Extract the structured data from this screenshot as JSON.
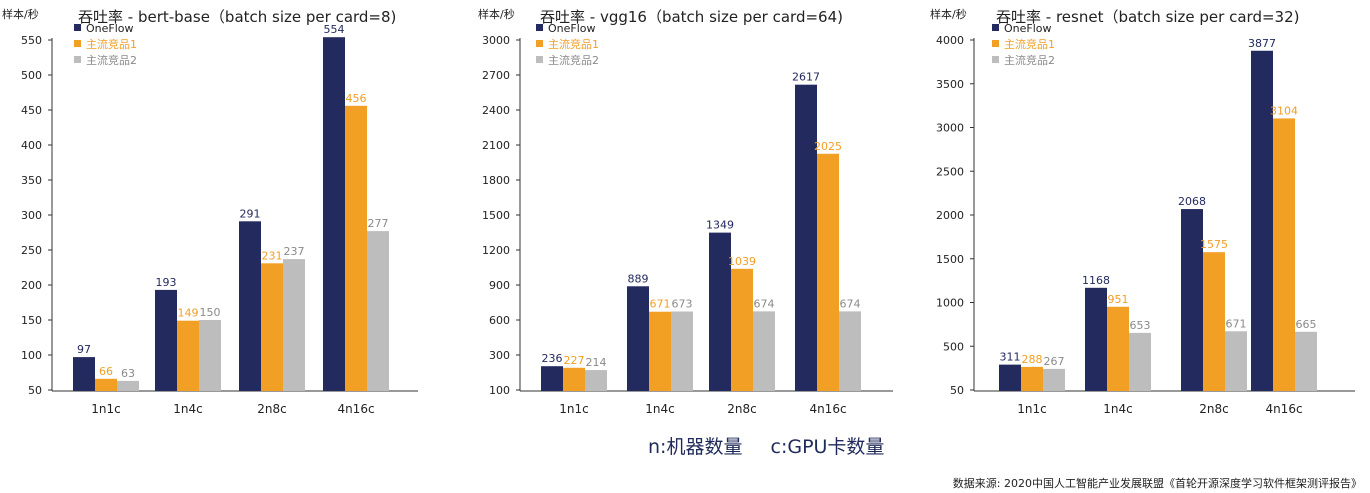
{
  "colors": {
    "oneflow": "#232a5e",
    "competitor1": "#f29f26",
    "competitor2": "#bdbdbd",
    "axis": "#333333",
    "text": "#222222"
  },
  "chart_data": [
    {
      "type": "bar",
      "title": "吞吐率 - bert-base（batch size per card=8)",
      "ylabel": "样本/秒",
      "categories": [
        "1n1c",
        "1n4c",
        "2n8c",
        "4n16c"
      ],
      "yticks": [
        50,
        100,
        150,
        200,
        250,
        300,
        350,
        400,
        450,
        500,
        550
      ],
      "ylim": [
        50,
        575
      ],
      "legend_position": "top-left",
      "series": [
        {
          "name": "OneFlow",
          "values": [
            97,
            193,
            291,
            554
          ],
          "labels": [
            "97",
            "193",
            "291",
            "554"
          ]
        },
        {
          "name": "主流竞品1",
          "values": [
            66,
            149,
            231,
            456
          ],
          "labels": [
            "66",
            "149",
            "231",
            "456"
          ]
        },
        {
          "name": "主流竞品2",
          "values": [
            63,
            150,
            237,
            277
          ],
          "labels": [
            "63",
            "150",
            "237",
            "277"
          ]
        }
      ]
    },
    {
      "type": "bar",
      "title": "吞吐率 - vgg16（batch size per card=64)",
      "ylabel": "样本/秒",
      "categories": [
        "1n1c",
        "1n4c",
        "2n8c",
        "4n16c"
      ],
      "yticks": [
        100,
        300,
        600,
        900,
        1200,
        1500,
        1800,
        2100,
        2400,
        2700,
        3000
      ],
      "ylim": [
        100,
        3100
      ],
      "legend_position": "top-left",
      "series": [
        {
          "name": "OneFlow",
          "values": [
            236,
            889,
            1349,
            2617
          ],
          "labels": [
            "236",
            "889",
            "1349",
            "2617"
          ]
        },
        {
          "name": "主流竞品1",
          "values": [
            227,
            671,
            1039,
            2025
          ],
          "labels": [
            "227",
            "671",
            "1039",
            "2025"
          ]
        },
        {
          "name": "主流竞品2",
          "values": [
            214,
            673,
            674,
            674
          ],
          "labels": [
            "214",
            "673",
            "674",
            "674"
          ]
        }
      ]
    },
    {
      "type": "bar",
      "title": "吞吐率 - resnet（batch size per card=32)",
      "ylabel": "样本/秒",
      "categories": [
        "1n1c",
        "1n4c",
        "2n8c",
        "4n16c"
      ],
      "yticks": [
        50,
        500,
        1000,
        1500,
        2000,
        2500,
        3000,
        3500,
        4000
      ],
      "ylim": [
        50,
        4130
      ],
      "legend_position": "top-left",
      "series": [
        {
          "name": "OneFlow",
          "values": [
            311,
            1168,
            2068,
            3877
          ],
          "labels": [
            "311",
            "1168",
            "2068",
            "3877"
          ]
        },
        {
          "name": "主流竞品1",
          "values": [
            288,
            951,
            1575,
            3104
          ],
          "labels": [
            "288",
            "951",
            "1575",
            "3104"
          ]
        },
        {
          "name": "主流竞品2",
          "values": [
            267,
            653,
            671,
            665
          ],
          "labels": [
            "267",
            "653",
            "671",
            "665"
          ]
        }
      ]
    }
  ],
  "caption": {
    "part1": "n:机器数量",
    "part2": "c:GPU卡数量"
  },
  "source": "数据来源: 2020中国人工智能产业发展联盟《首轮开源深度学习软件框架测评报告》"
}
